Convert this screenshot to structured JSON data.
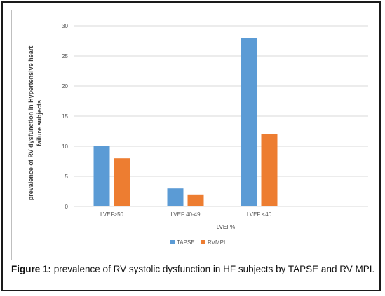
{
  "chart_data": {
    "type": "bar",
    "categories": [
      "LVEF>50",
      "LVEF 40-49",
      "LVEF <40"
    ],
    "series": [
      {
        "name": "TAPSE",
        "values": [
          10,
          3,
          28
        ],
        "color": "#5b9bd5"
      },
      {
        "name": "RVMPI",
        "values": [
          8,
          2,
          12
        ],
        "color": "#ed7d31"
      }
    ],
    "xlabel": "LVEF%",
    "ylabel_lines": [
      "prevalence of RV dysfunction in Hypertensive heart",
      "failure subjects"
    ],
    "ylim": [
      0,
      30
    ],
    "yticks": [
      0,
      5,
      10,
      15,
      20,
      25,
      30
    ],
    "grid": true,
    "legend_position": "bottom"
  },
  "caption": {
    "label": "Figure 1:",
    "text": " prevalence of RV systolic dysfunction in HF subjects by TAPSE and RV MPI."
  }
}
